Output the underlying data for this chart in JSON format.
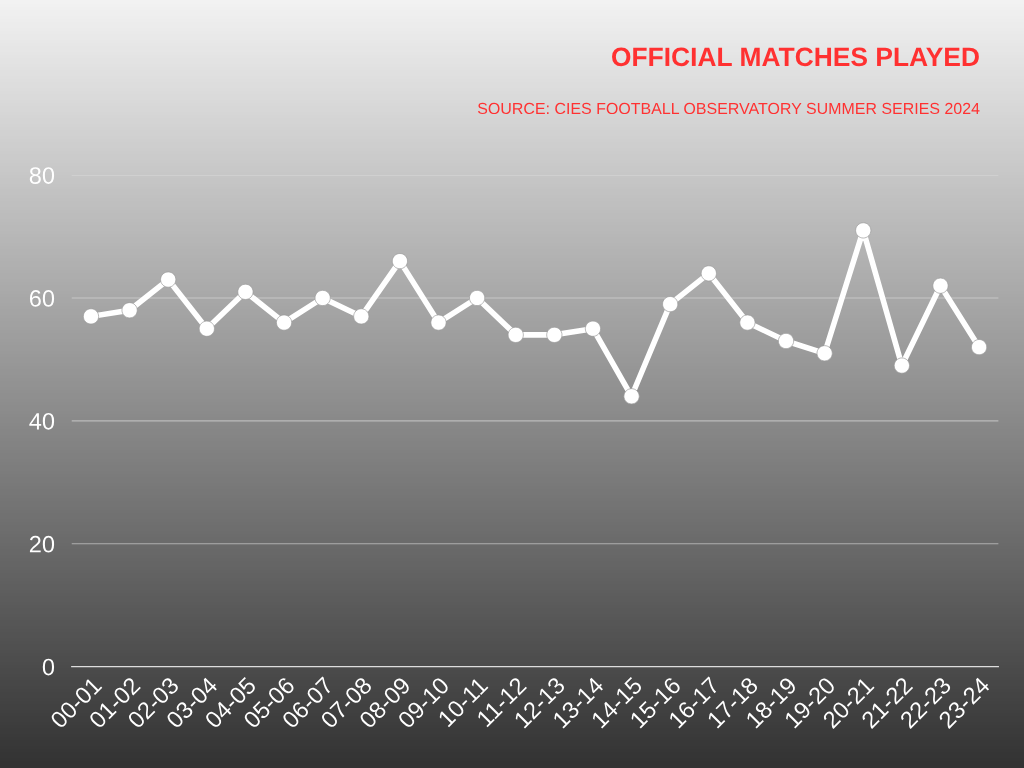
{
  "chart_data": {
    "type": "line",
    "title": "OFFICIAL MATCHES PLAYED",
    "subtitle": "SOURCE: CIES FOOTBALL OBSERVATORY SUMMER SERIES 2024",
    "categories": [
      "00-01",
      "01-02",
      "02-03",
      "03-04",
      "04-05",
      "05-06",
      "06-07",
      "07-08",
      "08-09",
      "09-10",
      "10-11",
      "11-12",
      "12-13",
      "13-14",
      "14-15",
      "15-16",
      "16-17",
      "17-18",
      "18-19",
      "19-20",
      "20-21",
      "21-22",
      "22-23",
      "23-24"
    ],
    "series": [
      {
        "color": "#ffffff",
        "values": [
          57,
          58,
          63,
          55,
          61,
          56,
          60,
          57,
          66,
          56,
          60,
          54,
          54,
          55,
          44,
          59,
          64,
          56,
          53,
          51,
          71,
          49,
          62,
          52
        ]
      }
    ],
    "ylim": [
      0,
      80
    ],
    "yticks": [
      0,
      20,
      40,
      60,
      80
    ],
    "grid": "y",
    "marker": "circle",
    "line_style": "solid"
  }
}
